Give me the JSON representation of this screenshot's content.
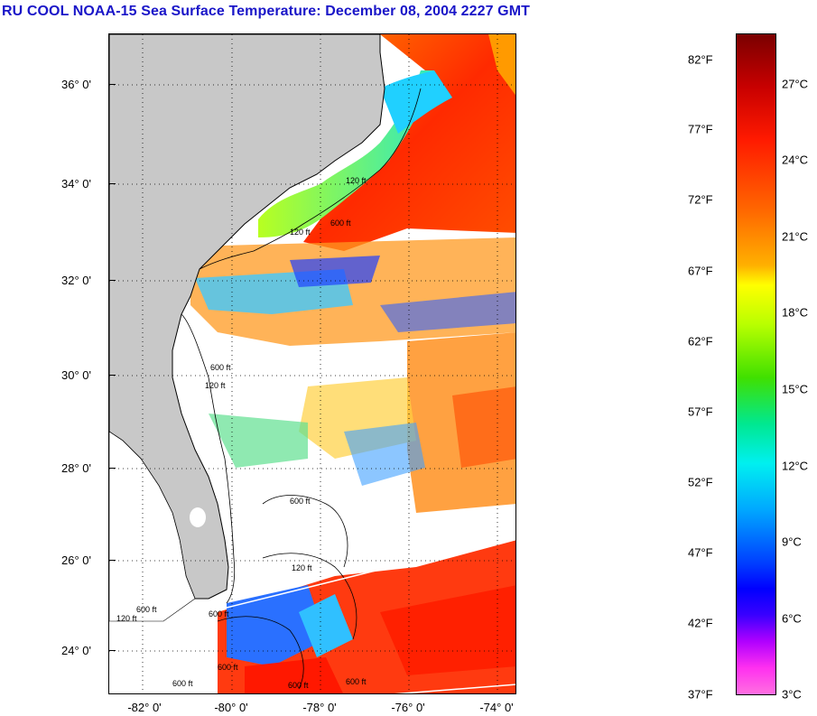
{
  "title": "RU COOL  NOAA-15  Sea Surface Temperature:  December 08, 2004 2227 GMT",
  "map": {
    "lat_labels": [
      "36° 0'",
      "34° 0'",
      "32° 0'",
      "30° 0'",
      "28° 0'",
      "26° 0'",
      "24° 0'"
    ],
    "lon_labels": [
      "-82° 0'",
      "-80° 0'",
      "-78° 0'",
      "-76° 0'",
      "-74° 0'"
    ],
    "contour_labels": [
      "120 ft",
      "600 ft",
      "120 ft",
      "600 ft",
      "120 ft",
      "600 ft",
      "120 ft",
      "600 ft",
      "120 ft",
      "600 ft",
      "600 ft",
      "600 ft",
      "600 ft",
      "600 ft"
    ],
    "land_color": "#c8c8c8",
    "cloud_color": "#ffffff"
  },
  "colorbar": {
    "fahrenheit_labels": [
      "82°F",
      "77°F",
      "72°F",
      "67°F",
      "62°F",
      "57°F",
      "52°F",
      "47°F",
      "42°F",
      "37°F"
    ],
    "celsius_labels": [
      "27°C",
      "24°C",
      "21°C",
      "18°C",
      "15°C",
      "12°C",
      "9°C",
      "6°C",
      "3°C"
    ]
  }
}
